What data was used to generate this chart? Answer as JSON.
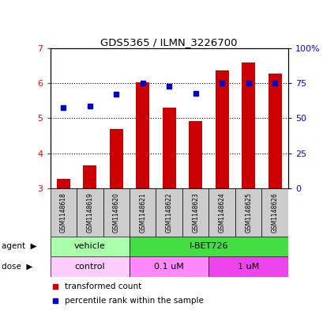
{
  "title": "GDS5365 / ILMN_3226700",
  "samples": [
    "GSM1148618",
    "GSM1148619",
    "GSM1148620",
    "GSM1148621",
    "GSM1148622",
    "GSM1148623",
    "GSM1148624",
    "GSM1148625",
    "GSM1148626"
  ],
  "bar_values": [
    3.27,
    3.65,
    4.68,
    6.02,
    5.3,
    4.92,
    6.37,
    6.58,
    6.28
  ],
  "dot_values": [
    5.3,
    5.35,
    5.68,
    6.01,
    5.92,
    5.72,
    6.01,
    6.01,
    6.01
  ],
  "bar_color": "#cc0000",
  "dot_color": "#0000cc",
  "ylim_left": [
    3,
    7
  ],
  "ylim_right": [
    0,
    100
  ],
  "yticks_left": [
    3,
    4,
    5,
    6,
    7
  ],
  "yticks_right": [
    0,
    25,
    50,
    75,
    100
  ],
  "ytick_labels_right": [
    "0",
    "25",
    "50",
    "75",
    "100%"
  ],
  "agent_vehicle_color": "#aaffaa",
  "agent_ibet_color": "#44dd44",
  "dose_control_color": "#ffccff",
  "dose_01um_color": "#ff88ff",
  "dose_1um_color": "#ee44ee",
  "legend_bar_label": "transformed count",
  "legend_dot_label": "percentile rank within the sample",
  "background_color": "#ffffff",
  "sample_bg_color": "#cccccc",
  "bar_width": 0.5
}
